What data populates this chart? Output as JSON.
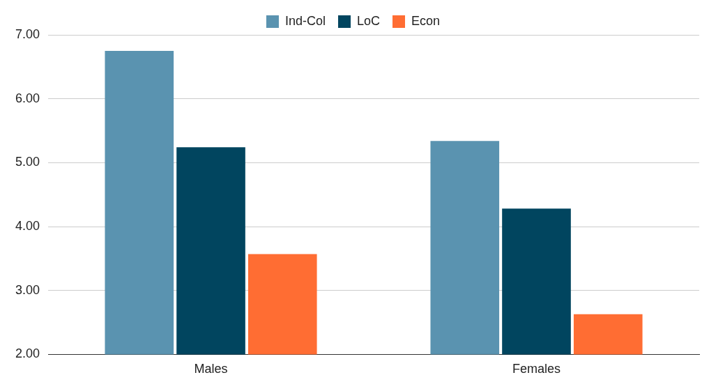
{
  "chart_data": {
    "type": "bar",
    "categories": [
      "Males",
      "Females"
    ],
    "series": [
      {
        "name": "Ind-Col",
        "color": "#5a93b0",
        "values": [
          6.75,
          5.34
        ]
      },
      {
        "name": "LoC",
        "color": "#01455f",
        "values": [
          5.24,
          4.28
        ]
      },
      {
        "name": "Econ",
        "color": "#ff6d33",
        "values": [
          3.57,
          2.63
        ]
      }
    ],
    "ylim": [
      2,
      7
    ],
    "yticks": [
      {
        "value": 2,
        "label": "2.00"
      },
      {
        "value": 3,
        "label": "3.00"
      },
      {
        "value": 4,
        "label": "4.00"
      },
      {
        "value": 5,
        "label": "5.00"
      },
      {
        "value": 6,
        "label": "6.00"
      },
      {
        "value": 7,
        "label": "7.00"
      }
    ],
    "grid": "y",
    "legend": "top"
  }
}
